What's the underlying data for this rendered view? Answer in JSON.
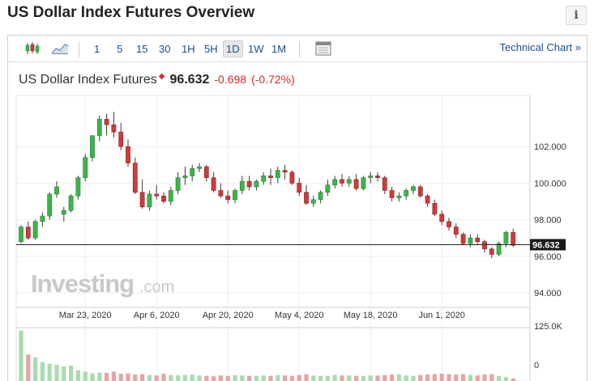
{
  "page": {
    "title": "US Dollar Index Futures Overview",
    "info_label": "i"
  },
  "toolbar": {
    "candle_icon": "candlestick-chart-icon",
    "area_icon": "area-chart-icon",
    "timeframes": [
      "1",
      "5",
      "15",
      "30",
      "1H",
      "5H",
      "1D",
      "1W",
      "1M"
    ],
    "active_timeframe": "1D",
    "calendar_icon": "calendar-icon",
    "technical_chart": "Technical Chart »"
  },
  "quote": {
    "name": "US Dollar Index Futures",
    "price": "96.632",
    "change": "-0.698",
    "change_pct": "(-0.72%)"
  },
  "colors": {
    "up": "#3ab54a",
    "down": "#cf3a3a",
    "text_down": "#d9262a",
    "link": "#1a4f8a"
  },
  "watermark": {
    "brand": "Investing",
    "suffix": ".com"
  },
  "chart_data": {
    "type": "candlestick",
    "price_axis": {
      "ticks": [
        "102.000",
        "100.000",
        "98.000",
        "96.000",
        "94.000"
      ],
      "range": [
        93.2,
        104.8
      ]
    },
    "volume_axis": {
      "ticks": [
        "125.0K",
        "0"
      ],
      "range": [
        0,
        125000
      ]
    },
    "x_tick_labels": [
      "Mar 23, 2020",
      "Apr 6, 2020",
      "Apr 20, 2020",
      "May 4, 2020",
      "May 18, 2020",
      "Jun 1, 2020"
    ],
    "x_tick_index": [
      9,
      19,
      29,
      39,
      49,
      59
    ],
    "last_price_label": "96.632",
    "last_price": 96.632,
    "grid": true,
    "candles": [
      [
        96.8,
        97.7,
        96.7,
        97.6
      ],
      [
        97.6,
        97.9,
        96.9,
        97.0
      ],
      [
        97.0,
        98.0,
        96.9,
        97.9
      ],
      [
        97.9,
        98.4,
        97.6,
        98.2
      ],
      [
        98.2,
        99.5,
        98.0,
        99.4
      ],
      [
        99.4,
        100.1,
        99.2,
        99.8
      ],
      [
        98.3,
        98.7,
        97.9,
        98.5
      ],
      [
        98.5,
        99.4,
        98.4,
        99.3
      ],
      [
        99.3,
        100.4,
        99.1,
        100.3
      ],
      [
        100.3,
        101.6,
        100.1,
        101.4
      ],
      [
        101.4,
        102.6,
        101.2,
        102.6
      ],
      [
        102.6,
        103.7,
        102.3,
        103.5
      ],
      [
        103.5,
        103.8,
        102.6,
        103.2
      ],
      [
        103.2,
        103.9,
        102.5,
        102.8
      ],
      [
        102.8,
        103.3,
        101.8,
        102.0
      ],
      [
        102.0,
        102.4,
        100.9,
        101.1
      ],
      [
        101.1,
        101.4,
        99.4,
        99.5
      ],
      [
        99.5,
        100.2,
        98.6,
        98.7
      ],
      [
        98.7,
        99.6,
        98.5,
        99.4
      ],
      [
        99.4,
        99.9,
        99.1,
        99.3
      ],
      [
        99.3,
        99.5,
        98.9,
        99.0
      ],
      [
        99.0,
        99.8,
        98.8,
        99.6
      ],
      [
        99.6,
        100.6,
        99.4,
        100.3
      ],
      [
        100.3,
        100.9,
        99.9,
        100.4
      ],
      [
        100.4,
        101.0,
        100.1,
        100.8
      ],
      [
        100.8,
        101.1,
        100.6,
        100.9
      ],
      [
        100.9,
        101.0,
        100.1,
        100.3
      ],
      [
        100.3,
        100.6,
        99.5,
        99.6
      ],
      [
        99.6,
        100.0,
        99.2,
        99.3
      ],
      [
        99.3,
        99.6,
        98.9,
        99.1
      ],
      [
        99.1,
        99.7,
        98.9,
        99.6
      ],
      [
        99.6,
        100.4,
        99.4,
        100.1
      ],
      [
        100.1,
        100.4,
        99.6,
        99.8
      ],
      [
        99.8,
        100.2,
        99.6,
        100.1
      ],
      [
        100.1,
        100.6,
        99.9,
        100.4
      ],
      [
        100.4,
        100.8,
        99.9,
        100.3
      ],
      [
        100.3,
        100.9,
        100.0,
        100.7
      ],
      [
        100.7,
        101.0,
        100.2,
        100.6
      ],
      [
        100.6,
        100.7,
        99.9,
        100.0
      ],
      [
        100.0,
        100.3,
        99.3,
        99.5
      ],
      [
        99.5,
        99.9,
        98.8,
        98.9
      ],
      [
        98.9,
        99.3,
        98.7,
        99.1
      ],
      [
        99.1,
        99.6,
        98.9,
        99.5
      ],
      [
        99.5,
        100.2,
        99.3,
        99.9
      ],
      [
        99.9,
        100.4,
        99.7,
        100.2
      ],
      [
        100.2,
        100.5,
        99.8,
        100.0
      ],
      [
        100.0,
        100.4,
        99.8,
        100.2
      ],
      [
        100.2,
        100.5,
        99.6,
        99.7
      ],
      [
        99.7,
        100.4,
        99.6,
        100.3
      ],
      [
        100.3,
        100.6,
        100.0,
        100.4
      ],
      [
        100.4,
        100.6,
        100.1,
        100.3
      ],
      [
        100.3,
        100.4,
        99.4,
        99.6
      ],
      [
        99.6,
        99.8,
        99.0,
        99.2
      ],
      [
        99.2,
        99.5,
        99.0,
        99.3
      ],
      [
        99.3,
        99.7,
        99.1,
        99.6
      ],
      [
        99.6,
        99.9,
        99.4,
        99.8
      ],
      [
        99.8,
        99.9,
        99.2,
        99.3
      ],
      [
        99.3,
        99.4,
        98.7,
        98.9
      ],
      [
        98.9,
        99.1,
        98.2,
        98.3
      ],
      [
        98.3,
        98.5,
        97.7,
        97.9
      ],
      [
        97.9,
        98.1,
        97.4,
        97.6
      ],
      [
        97.6,
        97.8,
        97.0,
        97.2
      ],
      [
        97.2,
        97.3,
        96.6,
        96.7
      ],
      [
        96.7,
        97.2,
        96.5,
        97.0
      ],
      [
        97.0,
        97.2,
        96.6,
        96.8
      ],
      [
        96.8,
        96.9,
        96.2,
        96.4
      ],
      [
        96.4,
        96.5,
        95.9,
        96.1
      ],
      [
        96.1,
        96.8,
        96.0,
        96.7
      ],
      [
        96.7,
        97.4,
        96.5,
        97.3
      ],
      [
        97.3,
        97.5,
        96.5,
        96.6
      ]
    ],
    "volumes": [
      118000,
      62000,
      55000,
      44000,
      40000,
      38000,
      34000,
      36000,
      25000,
      22000,
      18000,
      20000,
      19000,
      22000,
      17000,
      18000,
      15000,
      16000,
      14000,
      13000,
      17000,
      14000,
      13000,
      14000,
      15000,
      13000,
      12000,
      11000,
      13000,
      12000,
      14000,
      13000,
      12000,
      12000,
      13000,
      12000,
      14000,
      13000,
      12000,
      14000,
      16000,
      13000,
      12000,
      12000,
      14000,
      13000,
      13000,
      12000,
      12000,
      13000,
      13000,
      14000,
      15000,
      16000,
      13000,
      12000,
      14000,
      15000,
      16000,
      17000,
      16000,
      15000,
      16000,
      14000,
      13000,
      15000,
      16000,
      12000,
      9000,
      6000
    ]
  }
}
